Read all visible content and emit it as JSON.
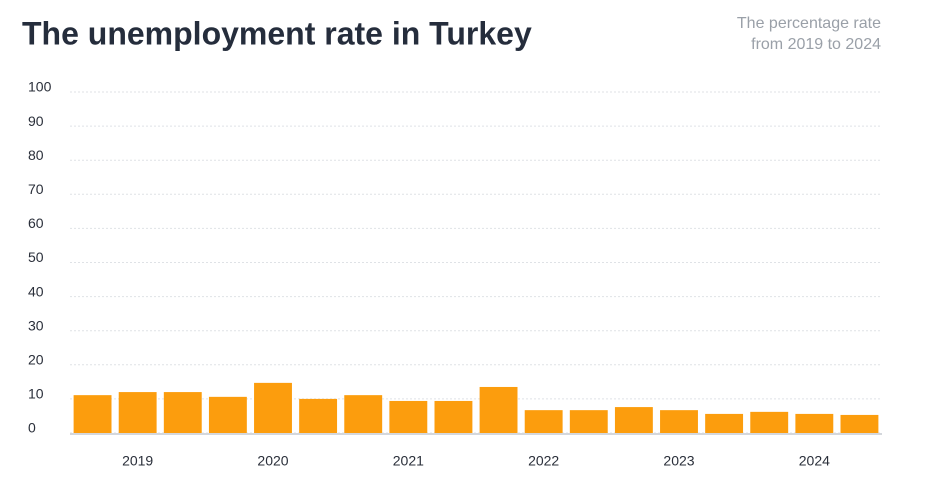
{
  "chart_data": {
    "type": "bar",
    "title": "The unemployment rate in Turkey",
    "subtitle": [
      "The percentage rate",
      "from 2019 to 2024"
    ],
    "categories": [
      null,
      "2019",
      null,
      null,
      "2020",
      null,
      null,
      "2021",
      null,
      null,
      "2022",
      null,
      null,
      "2023",
      null,
      null,
      "2024",
      null
    ],
    "values": [
      11.1,
      12.0,
      12.0,
      10.6,
      14.7,
      10.0,
      11.1,
      9.4,
      9.4,
      13.5,
      6.7,
      6.7,
      7.6,
      6.7,
      5.6,
      6.2,
      5.6,
      5.3
    ],
    "color": "#fc9d0d",
    "ylim": [
      0,
      100
    ],
    "yticks": [
      0,
      10,
      20,
      30,
      40,
      50,
      60,
      70,
      80,
      90,
      100
    ],
    "grid": true
  }
}
